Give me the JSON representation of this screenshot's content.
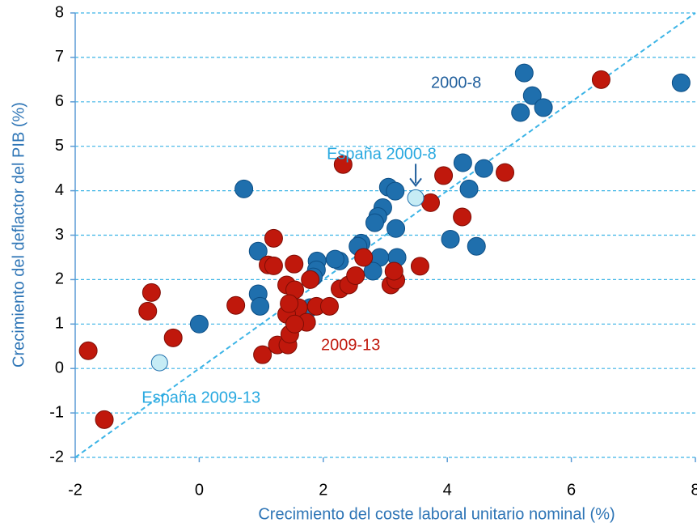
{
  "chart_data": {
    "type": "scatter",
    "xlabel": "Crecimiento del coste laboral unitario nominal (%)",
    "ylabel": "Crecimiento del deflactor del PIB (%)",
    "xlim": [
      -2,
      8
    ],
    "ylim": [
      -2,
      8
    ],
    "xticks": [
      -2,
      0,
      2,
      4,
      6,
      8
    ],
    "yticks": [
      -2,
      -1,
      0,
      1,
      2,
      3,
      4,
      5,
      6,
      7,
      8
    ],
    "grid": true,
    "diagonal": true,
    "series": [
      {
        "name": "2000-8",
        "color": "#1f6fad",
        "x": [
          0.72,
          5.24,
          7.77,
          5.37,
          5.55,
          5.18,
          4.59,
          4.25,
          4.35,
          4.05,
          4.47,
          3.05,
          3.16,
          2.96,
          2.88,
          2.83,
          3.17,
          2.61,
          2.56,
          3.19,
          2.91,
          2.8,
          2.26,
          2.19,
          1.9,
          1.89,
          0.95,
          0.95,
          0.98,
          0.0,
          1.84,
          1.79
        ],
        "values": [
          4.04,
          6.65,
          6.43,
          6.14,
          5.87,
          5.76,
          4.5,
          4.63,
          4.04,
          2.91,
          2.75,
          4.08,
          3.99,
          3.62,
          3.42,
          3.28,
          3.15,
          2.82,
          2.75,
          2.5,
          2.5,
          2.19,
          2.42,
          2.46,
          2.42,
          2.22,
          2.64,
          1.68,
          1.4,
          1.0,
          2.06,
          1.37
        ]
      },
      {
        "name": "2009-13",
        "color": "#c0180c",
        "x": [
          -1.79,
          -1.53,
          -0.77,
          -0.83,
          -0.42,
          0.59,
          1.02,
          1.2,
          1.11,
          1.2,
          1.53,
          1.41,
          1.54,
          1.26,
          1.43,
          1.46,
          1.6,
          1.41,
          1.45,
          1.73,
          1.54,
          1.89,
          2.1,
          1.79,
          2.32,
          2.27,
          2.41,
          2.52,
          2.65,
          3.09,
          3.17,
          3.14,
          3.56,
          3.73,
          3.94,
          4.24,
          4.93,
          6.48
        ],
        "values": [
          0.4,
          -1.15,
          1.71,
          1.29,
          0.69,
          1.42,
          0.31,
          2.93,
          2.33,
          2.31,
          2.35,
          1.88,
          1.77,
          0.53,
          0.53,
          0.77,
          1.37,
          1.22,
          1.46,
          1.04,
          1.0,
          1.4,
          1.4,
          2.0,
          4.59,
          1.79,
          1.88,
          2.09,
          2.5,
          1.88,
          1.99,
          2.19,
          2.3,
          3.73,
          4.34,
          3.41,
          4.41,
          6.5
        ]
      }
    ],
    "annotations": [
      {
        "text": "España 2000-8",
        "x": 3.49,
        "y": 3.84,
        "color": "#c6ecf5"
      },
      {
        "text": "España 2009-13",
        "x": -0.64,
        "y": 0.13,
        "color": "#c6ecf5"
      }
    ]
  }
}
